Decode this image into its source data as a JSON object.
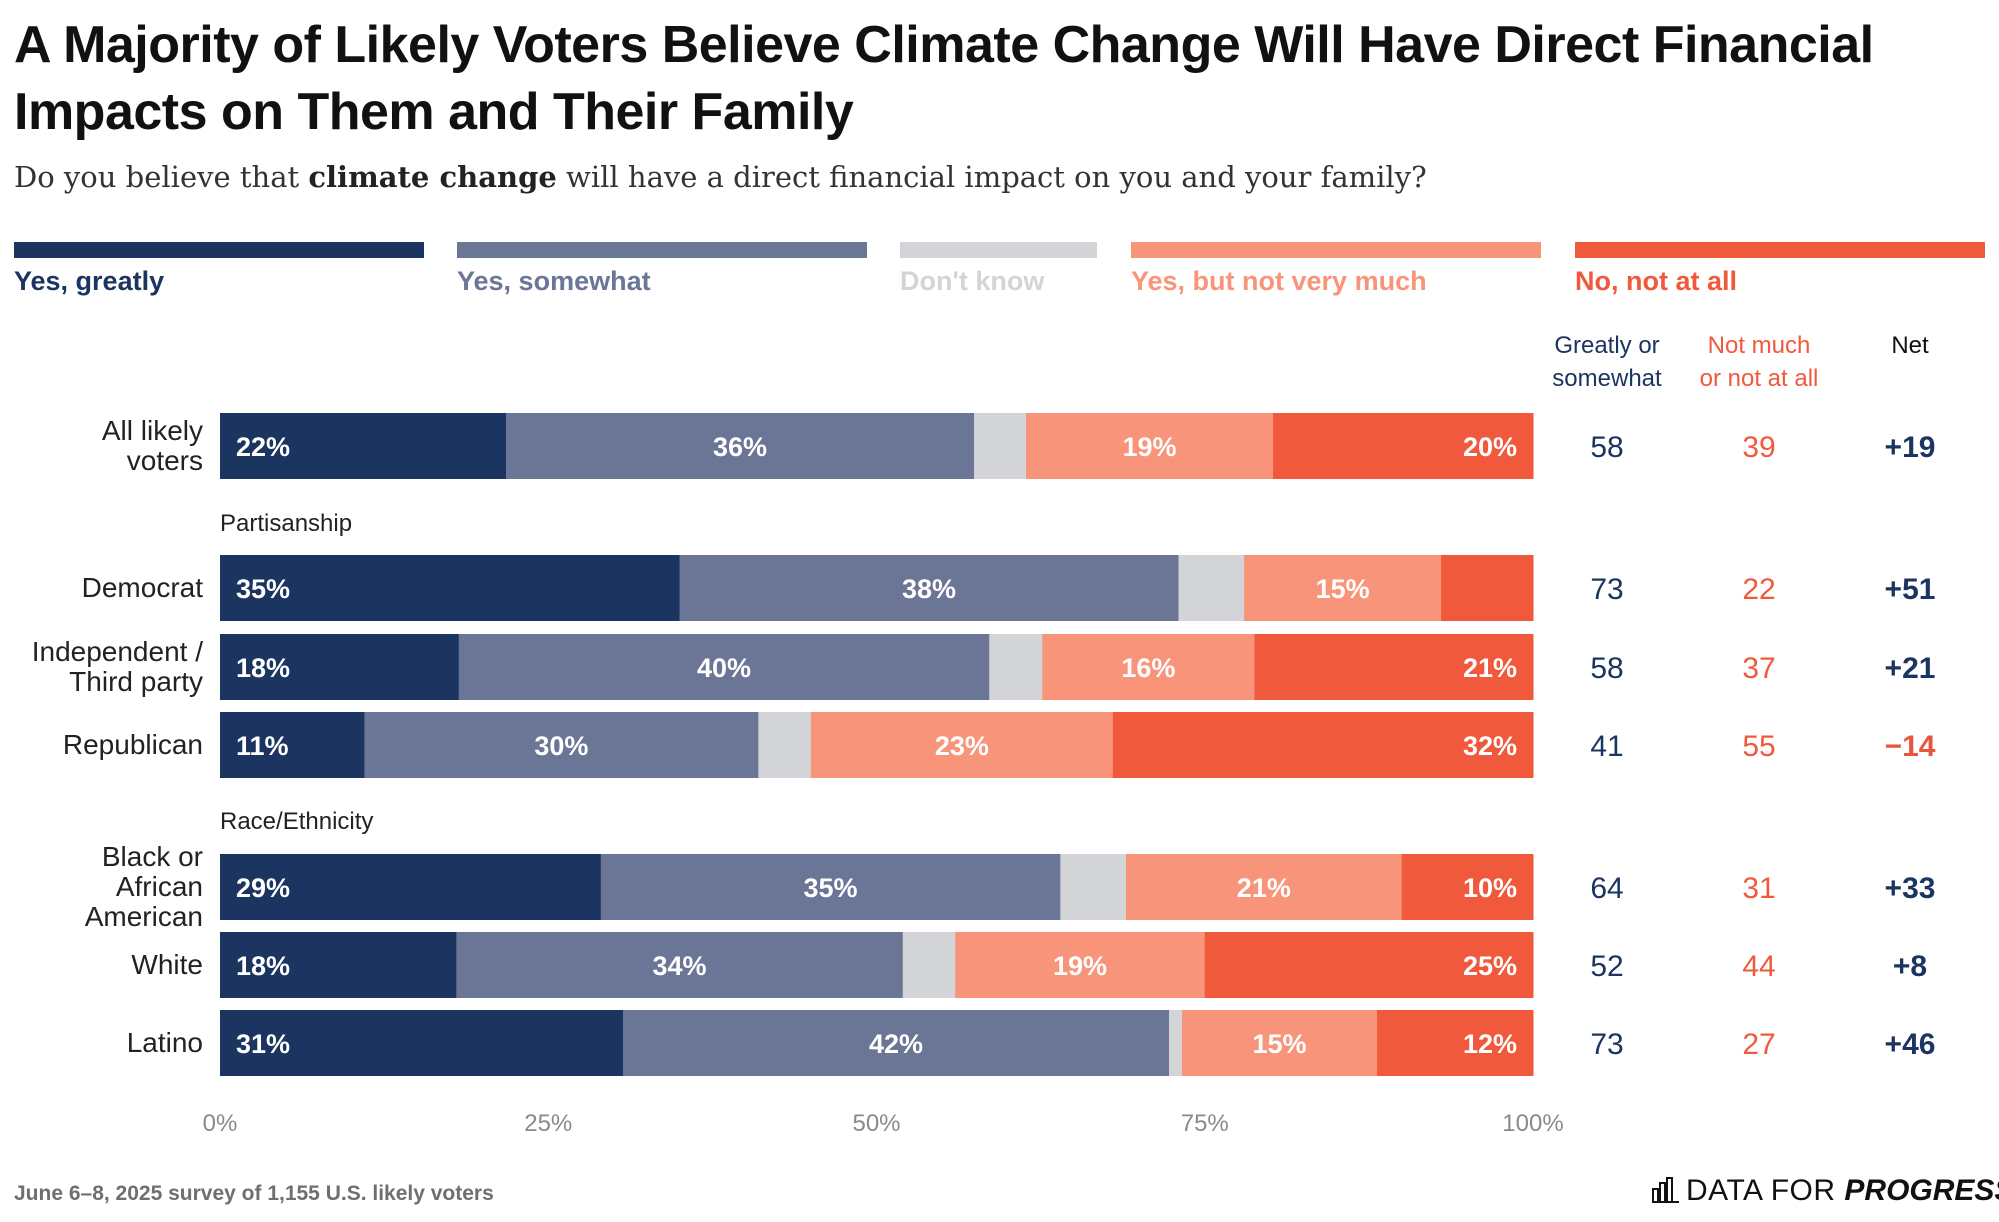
{
  "title": "A Majority of Likely Voters Believe Climate Change Will Have Direct Financial Impacts on Them and Their Family",
  "subtitle": {
    "prefix": "Do you believe that ",
    "bold": "climate change",
    "suffix": " will have a direct financial impact on you and your family?"
  },
  "footer_note": "June 6–8, 2025 survey of 1,155 U.S. likely voters",
  "logo": {
    "text_regular": "DATA FOR ",
    "text_bold": "PROGRESS",
    "icon": "bar-chart-icon"
  },
  "colors": {
    "yes_greatly": "#1c3560",
    "yes_somewhat": "#6b7596",
    "dont_know": "#d3d4d7",
    "yes_not_much": "#f89479",
    "no_not_at_all": "#f0593c",
    "neg_net": "#e8553a"
  },
  "chart_data": {
    "type": "bar",
    "orientation": "horizontal-stacked",
    "categories": [
      "Yes, greatly",
      "Yes, somewhat",
      "Don't know",
      "Yes, but not very much",
      "No, not at all"
    ],
    "groups": [
      {
        "label": "",
        "rows": [
          {
            "label": "All likely voters",
            "label_lines": [
              "All likely",
              "voters"
            ],
            "values": [
              22,
              36,
              4,
              19,
              20
            ],
            "greatly_or_somewhat": "58",
            "not_much_or_not_at_all": "39",
            "net": "+19"
          }
        ]
      },
      {
        "label": "Partisanship",
        "rows": [
          {
            "label": "Democrat",
            "label_lines": [
              "Democrat"
            ],
            "values": [
              35,
              38,
              5,
              15,
              7
            ],
            "greatly_or_somewhat": "73",
            "not_much_or_not_at_all": "22",
            "net": "+51"
          },
          {
            "label": "Independent / Third party",
            "label_lines": [
              "Independent /",
              "Third party"
            ],
            "values": [
              18,
              40,
              4,
              16,
              21
            ],
            "greatly_or_somewhat": "58",
            "not_much_or_not_at_all": "37",
            "net": "+21"
          },
          {
            "label": "Republican",
            "label_lines": [
              "Republican"
            ],
            "values": [
              11,
              30,
              4,
              23,
              32
            ],
            "greatly_or_somewhat": "41",
            "not_much_or_not_at_all": "55",
            "net": "−14"
          }
        ]
      },
      {
        "label": "Race/Ethnicity",
        "rows": [
          {
            "label": "Black or African American",
            "label_lines": [
              "Black or",
              "African",
              "American"
            ],
            "values": [
              29,
              35,
              5,
              21,
              10
            ],
            "greatly_or_somewhat": "64",
            "not_much_or_not_at_all": "31",
            "net": "+33"
          },
          {
            "label": "White",
            "label_lines": [
              "White"
            ],
            "values": [
              18,
              34,
              4,
              19,
              25
            ],
            "greatly_or_somewhat": "52",
            "not_much_or_not_at_all": "44",
            "net": "+8"
          },
          {
            "label": "Latino",
            "label_lines": [
              "Latino"
            ],
            "values": [
              31,
              42,
              1,
              15,
              12
            ],
            "greatly_or_somewhat": "73",
            "not_much_or_not_at_all": "27",
            "net": "+46"
          }
        ]
      }
    ],
    "value_labels_hidden": [
      [
        false,
        false,
        true,
        false,
        false
      ],
      [
        false,
        false,
        true,
        false,
        true
      ],
      [
        false,
        false,
        true,
        false,
        false
      ],
      [
        false,
        false,
        true,
        false,
        false
      ],
      [
        false,
        false,
        true,
        false,
        false
      ],
      [
        false,
        false,
        true,
        false,
        false
      ],
      [
        false,
        false,
        true,
        false,
        false
      ]
    ],
    "summary_columns": [
      {
        "key": "greatly_or_somewhat",
        "header_lines": [
          "Greatly or",
          "somewhat"
        ],
        "color": "#1c3560"
      },
      {
        "key": "not_much_or_not_at_all",
        "header_lines": [
          "Not much",
          "or not at all"
        ],
        "color": "#f0593c"
      },
      {
        "key": "net",
        "header_lines": [
          "Net"
        ],
        "color": "#111111"
      }
    ],
    "x_ticks": [
      "0%",
      "25%",
      "50%",
      "75%",
      "100%"
    ],
    "xlim": [
      0,
      100
    ],
    "legend_position": "top"
  }
}
